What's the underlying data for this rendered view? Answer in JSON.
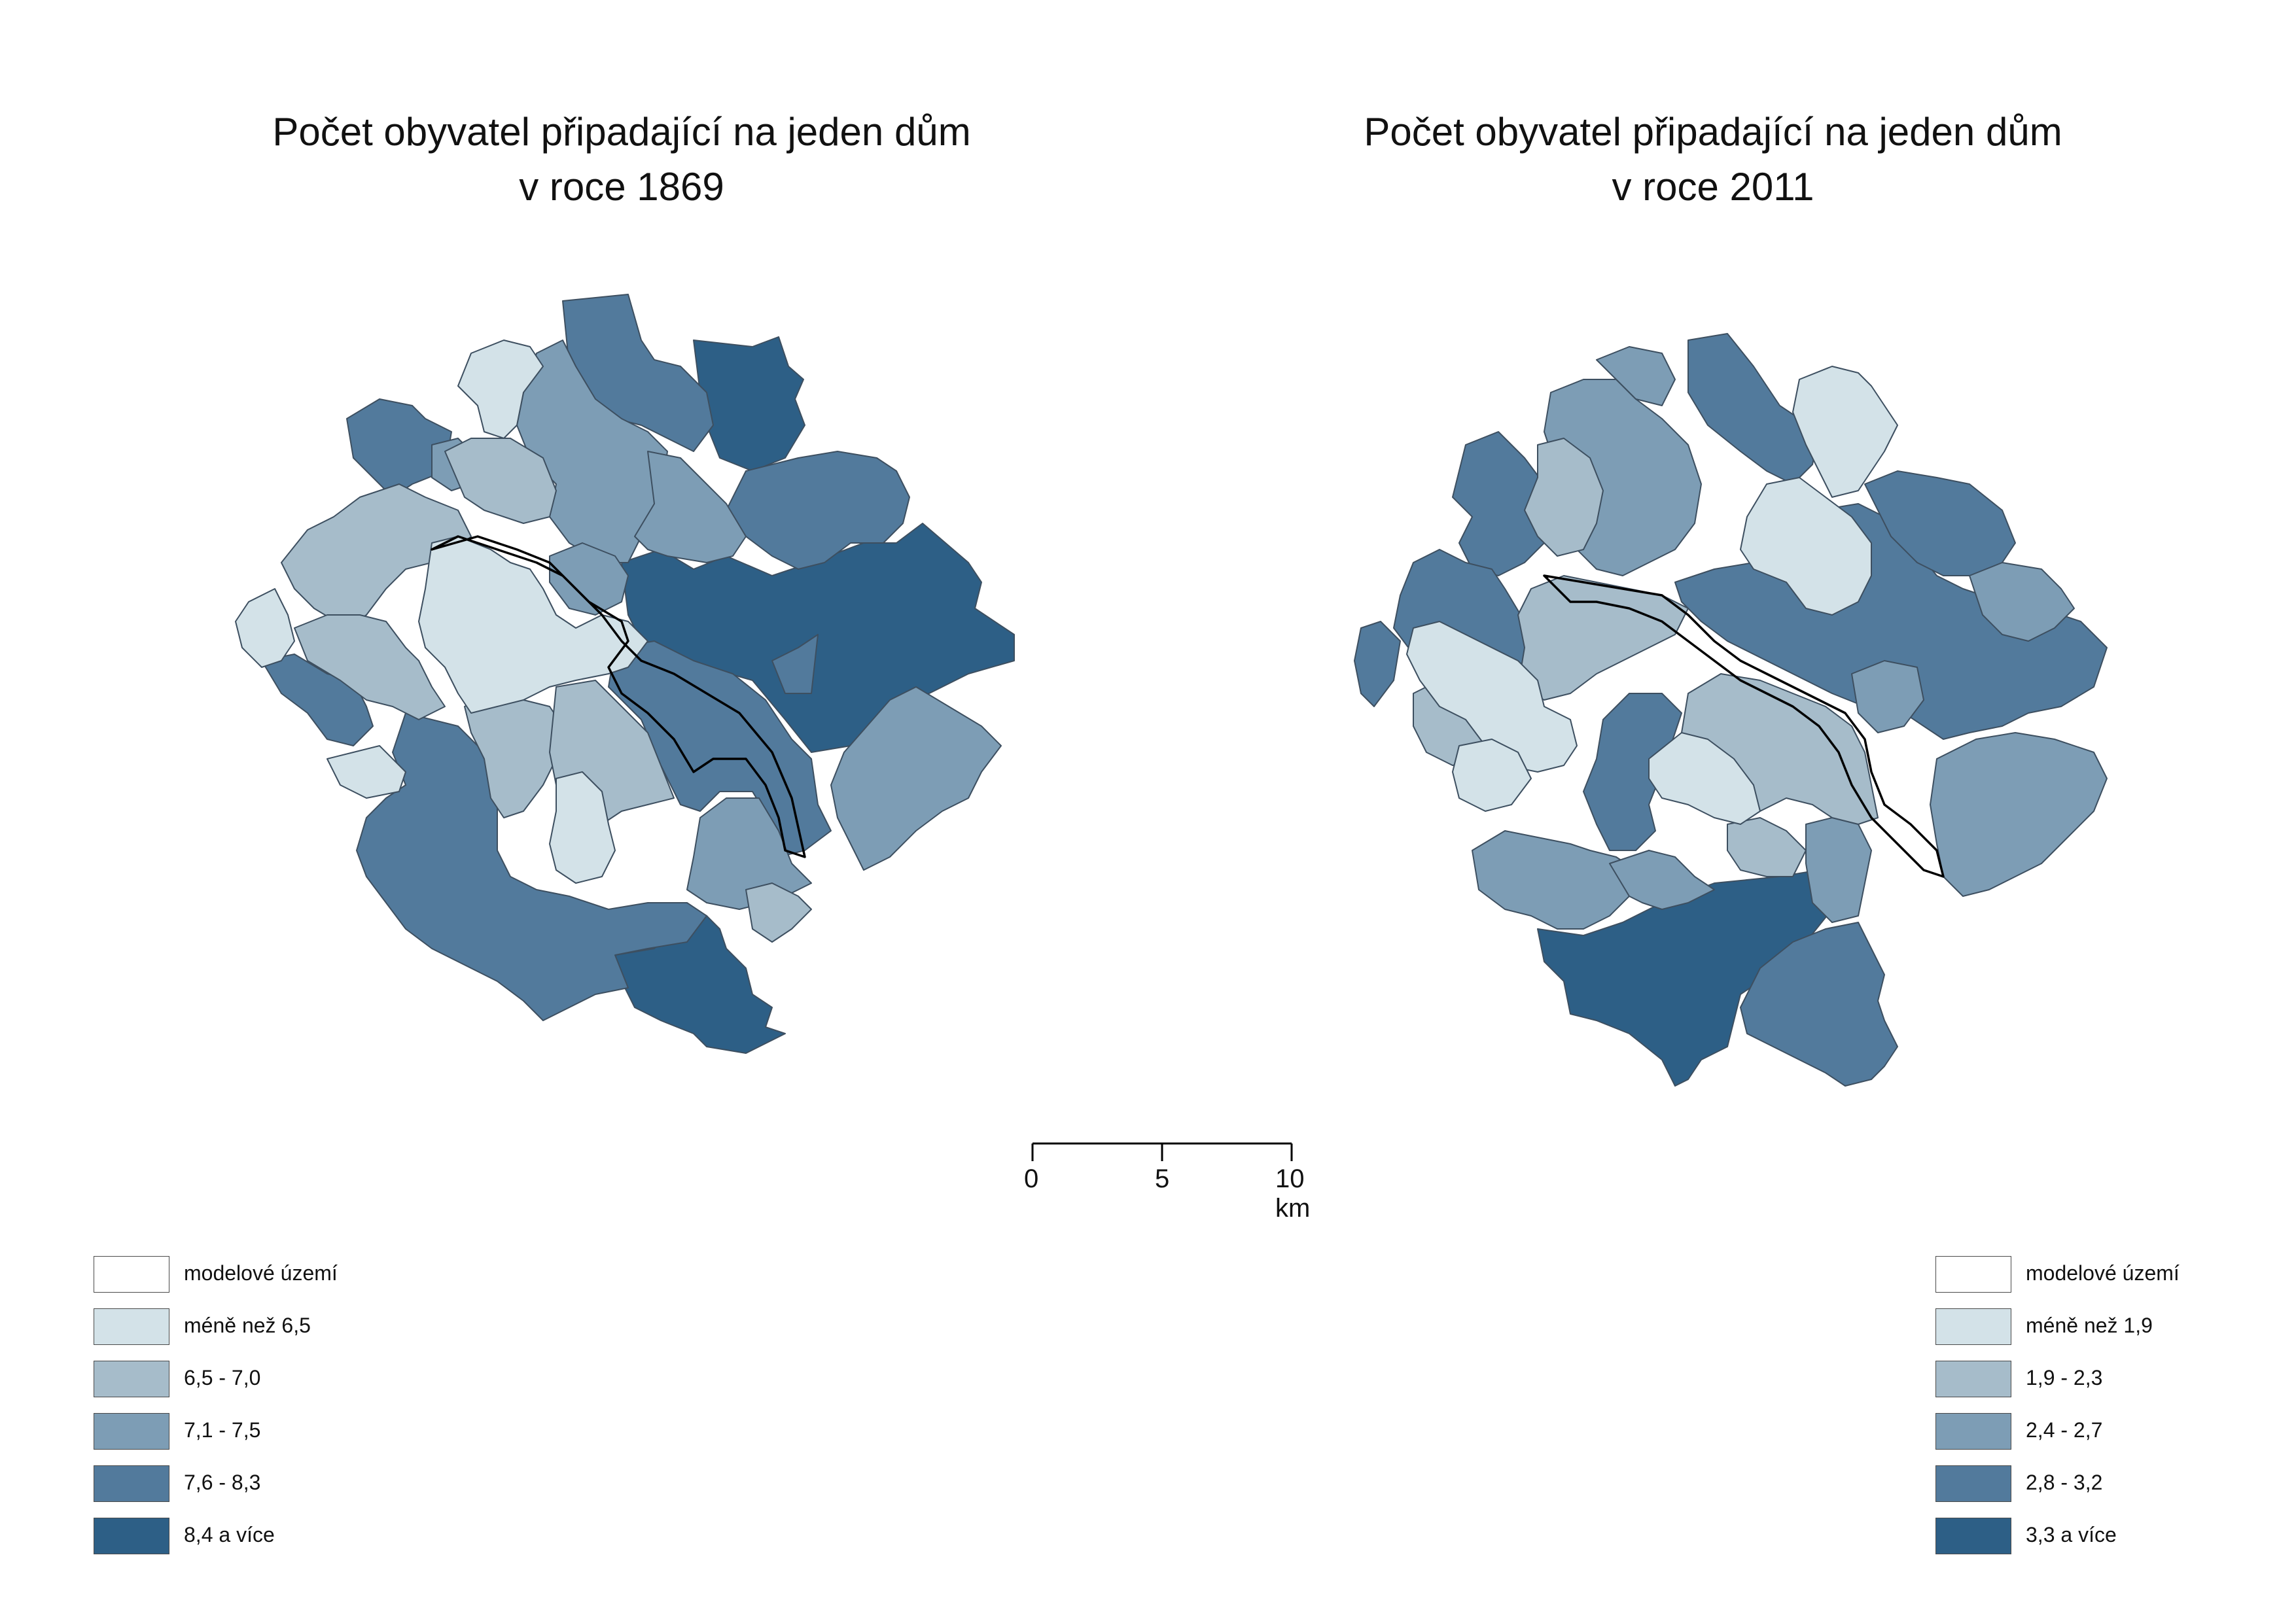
{
  "maps": [
    {
      "title_line1": "Počet obyvatel připadající na jeden dům",
      "title_line2": "v roce 1869",
      "legend": [
        {
          "label": "modelové území",
          "color": "#ffffff"
        },
        {
          "label": "méně než 6,5",
          "color": "#d3e2e8"
        },
        {
          "label": "6,5 - 7,0",
          "color": "#a6bcca"
        },
        {
          "label": "7,1 - 7,5",
          "color": "#7d9db5"
        },
        {
          "label": "7,6 - 8,3",
          "color": "#527a9c"
        },
        {
          "label": "8,4 a více",
          "color": "#2d5f86"
        }
      ]
    },
    {
      "title_line1": "Počet obyvatel připadající na jeden dům",
      "title_line2": "v roce 2011",
      "legend": [
        {
          "label": "modelové území",
          "color": "#ffffff"
        },
        {
          "label": "méně než 1,9",
          "color": "#d3e2e8"
        },
        {
          "label": "1,9 - 2,3",
          "color": "#a6bcca"
        },
        {
          "label": "2,4 - 2,7",
          "color": "#7d9db5"
        },
        {
          "label": "2,8 - 3,2",
          "color": "#527a9c"
        },
        {
          "label": "3,3 a více",
          "color": "#2d5f86"
        }
      ]
    }
  ],
  "scale_bar": {
    "labels": [
      "0",
      "5",
      "10 km"
    ]
  }
}
